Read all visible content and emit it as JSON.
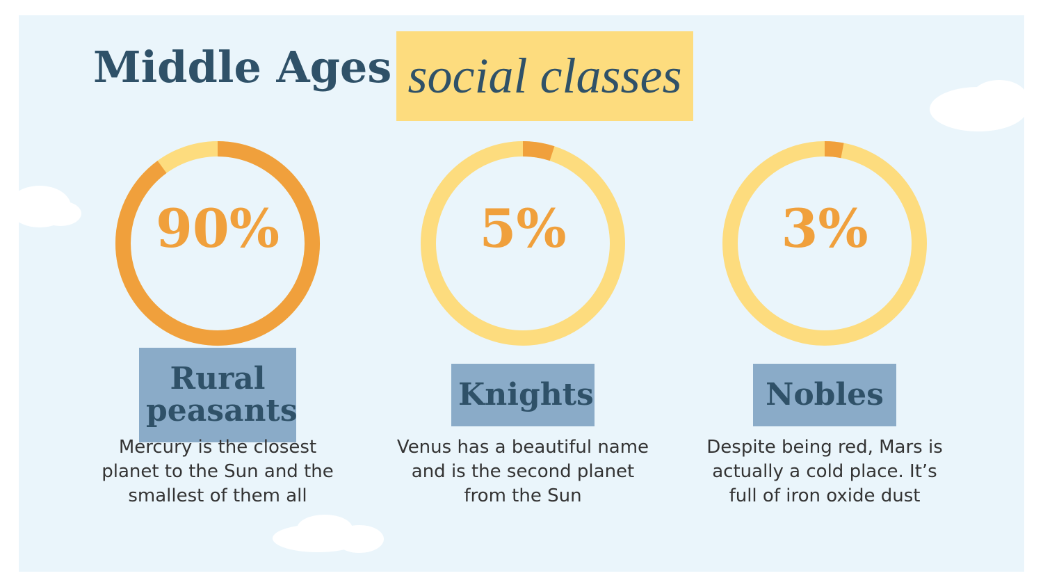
{
  "title": {
    "main": "Middle Ages",
    "highlight": "social classes"
  },
  "chart_data": [
    {
      "type": "donut",
      "title": "Rural peasants",
      "values": [
        90
      ],
      "value_labels": [
        "90%"
      ],
      "color": "#f0a03c",
      "track_color": "#fddc7e",
      "annotation": "Mercury is the closest planet to the Sun and the smallest of them all"
    },
    {
      "type": "donut",
      "title": "Knights",
      "values": [
        5
      ],
      "value_labels": [
        "5%"
      ],
      "color": "#f0a03c",
      "track_color": "#fddc7e",
      "annotation": "Venus has a beautiful name and is the second planet from the Sun"
    },
    {
      "type": "donut",
      "title": "Nobles",
      "values": [
        3
      ],
      "value_labels": [
        "3%"
      ],
      "color": "#f0a03c",
      "track_color": "#fddc7e",
      "annotation": "Despite being red, Mars is actually a cold place. It’s full of iron oxide dust"
    }
  ]
}
